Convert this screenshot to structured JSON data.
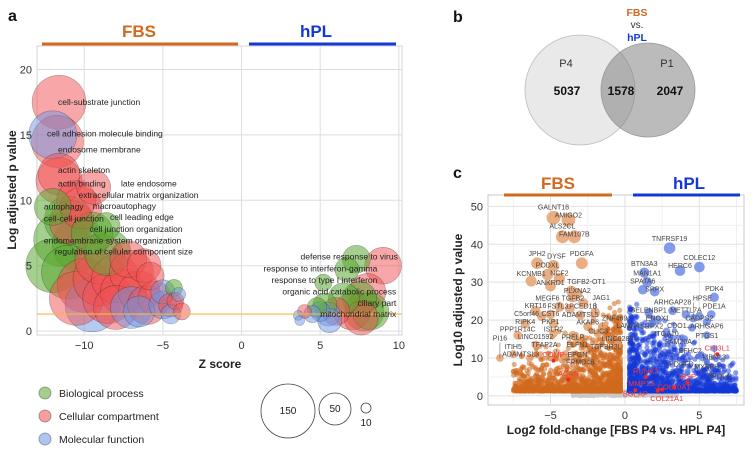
{
  "colors": {
    "fbs": "#d2691e",
    "hpl": "#1438d8",
    "bio": "#5aa832",
    "cell": "#f05050",
    "mol": "#6e96e6",
    "threshold": "#f5b942"
  },
  "chart_data": [
    {
      "panel": "a",
      "type": "scatter",
      "subtype": "bubble",
      "group_labels": {
        "left": "FBS",
        "right": "hPL"
      },
      "xlabel": "Z score",
      "ylabel": "Log adjusted p value",
      "xlim": [
        -13,
        10.2
      ],
      "ylim": [
        -0.3,
        21.8
      ],
      "xticks": [
        -10,
        -5,
        0,
        5,
        10
      ],
      "yticks": [
        0,
        5,
        10,
        15,
        20
      ],
      "threshold_y": 1.3,
      "grid": true,
      "legend": {
        "categories": [
          {
            "key": "B",
            "label": "Biological process"
          },
          {
            "key": "C",
            "label": "Cellular compartment"
          },
          {
            "key": "M",
            "label": "Molecular function"
          }
        ],
        "sizes": [
          150,
          50,
          10
        ],
        "size_labels": [
          "150",
          "50",
          "10"
        ],
        "placement": "bottom"
      },
      "bubbles": [
        [
          -11.6,
          17.5,
          150,
          "C"
        ],
        [
          -12,
          15,
          120,
          "M"
        ],
        [
          -11.7,
          14.5,
          140,
          "C"
        ],
        [
          -11.6,
          12,
          90,
          "C"
        ],
        [
          -11.6,
          11.5,
          110,
          "C"
        ],
        [
          -9.4,
          11,
          60,
          "C"
        ],
        [
          -10.5,
          10,
          80,
          "C"
        ],
        [
          -12,
          9.5,
          70,
          "B"
        ],
        [
          -10.2,
          9.4,
          90,
          "C"
        ],
        [
          -11,
          8.5,
          120,
          "B"
        ],
        [
          -10.8,
          8.3,
          100,
          "C"
        ],
        [
          -8.6,
          8,
          40,
          "B"
        ],
        [
          -9.5,
          7.5,
          90,
          "B"
        ],
        [
          -11.5,
          7,
          150,
          "B"
        ],
        [
          -10.3,
          6.6,
          150,
          "B"
        ],
        [
          -12,
          5,
          150,
          "B"
        ],
        [
          -11,
          4.5,
          150,
          "B"
        ],
        [
          -9,
          5.5,
          130,
          "C"
        ],
        [
          -10,
          3.5,
          150,
          "C"
        ],
        [
          -9.5,
          2,
          150,
          "M"
        ],
        [
          -10.5,
          2.5,
          150,
          "C"
        ],
        [
          -8.5,
          2.5,
          130,
          "C"
        ],
        [
          -8,
          4,
          120,
          "C"
        ],
        [
          -7,
          4.5,
          100,
          "C"
        ],
        [
          -7.5,
          3,
          110,
          "C"
        ],
        [
          -6.5,
          3,
          90,
          "C"
        ],
        [
          -6,
          2,
          80,
          "C"
        ],
        [
          -7,
          1.8,
          90,
          "M"
        ],
        [
          -8,
          1.8,
          100,
          "C"
        ],
        [
          -5.8,
          4.2,
          40,
          "C"
        ],
        [
          -5.5,
          2.5,
          60,
          "C"
        ],
        [
          -5,
          2,
          40,
          "M"
        ],
        [
          -5,
          3,
          30,
          "M"
        ],
        [
          -4.5,
          2,
          30,
          "C"
        ],
        [
          -4.3,
          3.3,
          15,
          "B"
        ],
        [
          -4.2,
          2.3,
          15,
          "C"
        ],
        [
          -4.5,
          1.3,
          20,
          "M"
        ],
        [
          -3.8,
          1.5,
          15,
          "C"
        ],
        [
          -4,
          2.8,
          10,
          "M"
        ],
        [
          -6.5,
          1.5,
          50,
          "M"
        ],
        [
          -9,
          4,
          150,
          "C"
        ],
        [
          -7.2,
          5.5,
          70,
          "C"
        ],
        [
          -8.5,
          6,
          110,
          "B"
        ],
        [
          -6.2,
          5,
          60,
          "C"
        ],
        [
          7.3,
          5.5,
          40,
          "B"
        ],
        [
          9,
          5,
          70,
          "C"
        ],
        [
          6.7,
          4.7,
          30,
          "B"
        ],
        [
          5.2,
          3.7,
          15,
          "B"
        ],
        [
          8,
          3,
          70,
          "C"
        ],
        [
          7.5,
          2.5,
          60,
          "B"
        ],
        [
          7.8,
          1.5,
          80,
          "B"
        ],
        [
          7,
          1.5,
          70,
          "C"
        ],
        [
          7.6,
          1,
          60,
          "C"
        ],
        [
          8.2,
          1.5,
          70,
          "B"
        ],
        [
          6,
          1.5,
          40,
          "C"
        ],
        [
          5.5,
          1.3,
          30,
          "M"
        ],
        [
          5,
          1.5,
          20,
          "M"
        ],
        [
          4.5,
          1.3,
          15,
          "M"
        ],
        [
          4,
          1.5,
          10,
          "C"
        ],
        [
          3.6,
          1.2,
          5,
          "M"
        ],
        [
          3.7,
          0.8,
          5,
          "M"
        ],
        [
          5.3,
          2,
          30,
          "B"
        ],
        [
          6.5,
          2.5,
          50,
          "B"
        ],
        [
          4.8,
          1.8,
          20,
          "B"
        ],
        [
          5.6,
          0.8,
          30,
          "M"
        ]
      ],
      "annotations": [
        {
          "text": "cell-substrate junction",
          "z": -11.6,
          "p": 17.5,
          "anchor": "start"
        },
        {
          "text": "cell adhesion molecule binding",
          "z": -12.3,
          "p": 15.1,
          "anchor": "start"
        },
        {
          "text": "endosome membrane",
          "z": -11.6,
          "p": 13.9,
          "anchor": "start"
        },
        {
          "text": "actin skeleton",
          "z": -11.6,
          "p": 12.3,
          "anchor": "start"
        },
        {
          "text": "actin binding",
          "z": -11.6,
          "p": 11.3,
          "anchor": "start"
        },
        {
          "text": "late endosome",
          "z": -7.6,
          "p": 11.3,
          "anchor": "start"
        },
        {
          "text": "extracellular matrix organization",
          "z": -10.3,
          "p": 10.4,
          "anchor": "start"
        },
        {
          "text": "autophagy",
          "z": -12.5,
          "p": 9.9,
          "anchor": "start"
        },
        {
          "text": "macroautophagy",
          "z": -9.4,
          "p": 9.8,
          "anchor": "start"
        },
        {
          "text": "cell-cell junction",
          "z": -12.5,
          "p": 8.7,
          "anchor": "start"
        },
        {
          "text": "cell leading edge",
          "z": -8.3,
          "p": 8.8,
          "anchor": "start"
        },
        {
          "text": "cell junction organization",
          "z": -9.6,
          "p": 8.1,
          "anchor": "start"
        },
        {
          "text": "endomembrane system organization",
          "z": -12.5,
          "p": 7.3,
          "anchor": "start"
        },
        {
          "text": "regulation of cellular component size",
          "z": -11.8,
          "p": 6.3,
          "anchor": "start"
        },
        {
          "text": "defense response to virus",
          "z": 10,
          "p": 5.7,
          "anchor": "end"
        },
        {
          "text": "response to interferon-gamma",
          "z": 8.7,
          "p": 4.8,
          "anchor": "end"
        },
        {
          "text": "response to type I interferon",
          "z": 8.7,
          "p": 4.0,
          "anchor": "end"
        },
        {
          "text": "organic acid catabolic process",
          "z": 9.9,
          "p": 3.1,
          "anchor": "end"
        },
        {
          "text": "ciliary part",
          "z": 9.9,
          "p": 2.3,
          "anchor": "end"
        },
        {
          "text": "mitochondrial matrix",
          "z": 9.9,
          "p": 1.6,
          "anchor": "end"
        }
      ]
    },
    {
      "panel": "b",
      "type": "venn",
      "title_parts": [
        "FBS",
        "vs.",
        "hPL"
      ],
      "sets": [
        {
          "name": "P4",
          "only": 5037
        },
        {
          "name": "P1",
          "only": 2047
        }
      ],
      "intersection": 1578,
      "labels": {
        "p4": "P4",
        "p1": "P1",
        "p4_only": "5037",
        "both": "1578",
        "p1_only": "2047"
      }
    },
    {
      "panel": "c",
      "type": "scatter",
      "subtype": "volcano",
      "group_labels": {
        "left": "FBS",
        "right": "hPL"
      },
      "xlabel": "Log2 fold-change [FBS P4 vs. HPL P4]",
      "ylabel": "Log10 adjusted p value",
      "xlim": [
        -9.2,
        8.0
      ],
      "ylim": [
        -2.4,
        53
      ],
      "xticks": [
        -5,
        0,
        5
      ],
      "yticks": [
        0,
        10,
        20,
        30,
        40,
        50
      ],
      "grid": true,
      "cloud": {
        "fbs_points": 1400,
        "hpl_points": 1400,
        "nonsig_points": 500
      },
      "genes": [
        {
          "name": "GALNT18",
          "x": -4.8,
          "y": 47,
          "s": "fbs"
        },
        {
          "name": "AMIGO2",
          "x": -3.8,
          "y": 46.4,
          "s": "fbs"
        },
        {
          "name": "ALS2CL",
          "x": -4.2,
          "y": 42,
          "s": "fbs"
        },
        {
          "name": "FAM107B",
          "x": -3.4,
          "y": 42,
          "s": "fbs"
        },
        {
          "name": "JPH2",
          "x": -5.9,
          "y": 35,
          "s": "fbs"
        },
        {
          "name": "DYSF",
          "x": -4.8,
          "y": 34.3,
          "s": "fbs"
        },
        {
          "name": "PDGFA",
          "x": -2.9,
          "y": 35,
          "s": "fbs"
        },
        {
          "name": "PODXL",
          "x": -5.2,
          "y": 32,
          "s": "fbs"
        },
        {
          "name": "NCF2",
          "x": -4.4,
          "y": 31,
          "s": "fbs"
        },
        {
          "name": "KCNMB1",
          "x": -6.3,
          "y": 30.3,
          "s": "fbs"
        },
        {
          "name": "ANKRD1",
          "x": -5,
          "y": 29,
          "s": "fbs"
        },
        {
          "name": "TGFB2-OT1",
          "x": -3.6,
          "y": 27.7,
          "s": "fbs"
        },
        {
          "name": "PLXNA2",
          "x": -3.2,
          "y": 27,
          "s": "fbs"
        },
        {
          "name": "TGFB2",
          "x": -3.5,
          "y": 26,
          "s": "fbs"
        },
        {
          "name": "PCED1B",
          "x": -2.8,
          "y": 24.5,
          "s": "fbs"
        },
        {
          "name": "MEGF6",
          "x": -4.4,
          "y": 23.5,
          "s": "fbs"
        },
        {
          "name": "FSTL3",
          "x": -3.7,
          "y": 23,
          "s": "fbs"
        },
        {
          "name": "JAG1",
          "x": -2,
          "y": 22,
          "s": "fbs"
        },
        {
          "name": "ADAMTSL5",
          "x": -3,
          "y": 21.3,
          "s": "fbs"
        },
        {
          "name": "KRT16",
          "x": -6,
          "y": 22.5,
          "s": "fbs"
        },
        {
          "name": "C5orf46",
          "x": -5.6,
          "y": 21,
          "s": "fbs"
        },
        {
          "name": "CST6",
          "x": -5,
          "y": 21.5,
          "s": "fbs"
        },
        {
          "name": "RIPK4",
          "x": -6.7,
          "y": 19,
          "s": "fbs"
        },
        {
          "name": "PKP1",
          "x": -4.8,
          "y": 19,
          "s": "fbs"
        },
        {
          "name": "AKAP6",
          "x": -2.5,
          "y": 18.3,
          "s": "fbs"
        },
        {
          "name": "ZNF469",
          "x": -1.5,
          "y": 18.3,
          "s": "fbs"
        },
        {
          "name": "ISLR2",
          "x": -4.8,
          "y": 16.5,
          "s": "fbs"
        },
        {
          "name": "PRELP",
          "x": -3.5,
          "y": 16,
          "s": "fbs"
        },
        {
          "name": "CLIC3",
          "x": -1.8,
          "y": 16.5,
          "s": "fbs"
        },
        {
          "name": "PPP1R14C",
          "x": -7.2,
          "y": 16,
          "s": "fbs"
        },
        {
          "name": "ELFN1",
          "x": -3.2,
          "y": 14.5,
          "s": "fbs"
        },
        {
          "name": "LINC01592",
          "x": -6,
          "y": 13.5,
          "s": "fbs"
        },
        {
          "name": "LINC0288",
          "x": -0.5,
          "y": 13.5,
          "s": "fbs"
        },
        {
          "name": "ITIH5",
          "x": -7.5,
          "y": 11,
          "s": "fbs"
        },
        {
          "name": "TFAP2A",
          "x": -4.6,
          "y": 11.5,
          "s": "fbs"
        },
        {
          "name": "EPGN",
          "x": -4,
          "y": 11,
          "s": "fbs"
        },
        {
          "name": "TGFBR3L",
          "x": -2.7,
          "y": 11,
          "s": "fbs"
        },
        {
          "name": "FRMD4B",
          "x": -4.2,
          "y": 9.5,
          "s": "fbs"
        },
        {
          "name": "ADAMTSL3",
          "x": -6.4,
          "y": 10,
          "s": "fbs"
        },
        {
          "name": "PI16",
          "x": -8.4,
          "y": 10,
          "s": "fbs"
        },
        {
          "name": "COMP",
          "x": -4.8,
          "y": 9.3,
          "s": "marker"
        },
        {
          "name": "ACAN",
          "x": -3.8,
          "y": 4.3,
          "s": "marker"
        },
        {
          "name": "TNFRSF19",
          "x": 3,
          "y": 39,
          "s": "hpl"
        },
        {
          "name": "COLEC12",
          "x": 5,
          "y": 34,
          "s": "hpl"
        },
        {
          "name": "HERC6",
          "x": 3.7,
          "y": 33,
          "s": "hpl"
        },
        {
          "name": "BTN3A3",
          "x": 1.3,
          "y": 32.5,
          "s": "hpl"
        },
        {
          "name": "MAN1A1",
          "x": 1.5,
          "y": 30,
          "s": "hpl"
        },
        {
          "name": "SPATA6",
          "x": 1.2,
          "y": 28,
          "s": "hpl"
        },
        {
          "name": "SRPX",
          "x": 2,
          "y": 27.5,
          "s": "hpl"
        },
        {
          "name": "METTL7A",
          "x": 4.1,
          "y": 21.5,
          "s": "hpl"
        },
        {
          "name": "PDK4",
          "x": 6,
          "y": 26,
          "s": "hpl"
        },
        {
          "name": "CADPS2",
          "x": 5,
          "y": 21,
          "s": "hpl"
        },
        {
          "name": "HPSE",
          "x": 4.6,
          "y": 20.5,
          "s": "hpl"
        },
        {
          "name": "PDE1A",
          "x": 5.8,
          "y": 21.5,
          "s": "hpl"
        },
        {
          "name": "ARHGAP6",
          "x": 5.5,
          "y": 19.5,
          "s": "hpl"
        },
        {
          "name": "ARHGAP28",
          "x": 3.2,
          "y": 22.5,
          "s": "hpl"
        },
        {
          "name": "SELENBP1",
          "x": 1.6,
          "y": 22,
          "s": "hpl"
        },
        {
          "name": "ENOX1",
          "x": 2.2,
          "y": 20,
          "s": "hpl"
        },
        {
          "name": "SRPX2",
          "x": 1.8,
          "y": 19,
          "s": "hpl"
        },
        {
          "name": "LAMA4",
          "x": 1,
          "y": 18,
          "s": "hpl"
        },
        {
          "name": "ITGA10",
          "x": 2.8,
          "y": 17,
          "s": "hpl"
        },
        {
          "name": "CDO1",
          "x": 4.5,
          "y": 18,
          "s": "hpl"
        },
        {
          "name": "FAM20A",
          "x": 4,
          "y": 15,
          "s": "hpl"
        },
        {
          "name": "PTGS1",
          "x": 5.5,
          "y": 16,
          "s": "hpl"
        },
        {
          "name": "MBNL3",
          "x": 6,
          "y": 12.5,
          "s": "hpl"
        },
        {
          "name": "EFHC2",
          "x": 5,
          "y": 10.5,
          "s": "hpl"
        },
        {
          "name": "MYBPH",
          "x": 5.5,
          "y": 9,
          "s": "hpl"
        },
        {
          "name": "APOL4",
          "x": 6.3,
          "y": 5.5,
          "s": "hpl"
        },
        {
          "name": "PDGFD",
          "x": 4.2,
          "y": 6.5,
          "s": "hpl"
        },
        {
          "name": "CHI3L1",
          "x": 6.2,
          "y": 11,
          "s": "marker"
        },
        {
          "name": "RUNX2",
          "x": 1.4,
          "y": 5,
          "s": "marker"
        },
        {
          "name": "BGLAP",
          "x": 0.7,
          "y": 1.5,
          "s": "marker"
        },
        {
          "name": "COL21A1",
          "x": 2.2,
          "y": 1.4,
          "s": "marker"
        },
        {
          "name": "MMP13",
          "x": 2.5,
          "y": 1.7,
          "s": "marker"
        },
        {
          "name": "COL10A1",
          "x": 3.3,
          "y": 2.3,
          "s": "marker"
        },
        {
          "name": "IBSP",
          "x": 4.2,
          "y": 3.5,
          "s": "marker"
        }
      ]
    }
  ],
  "labels": {
    "a": "a",
    "b": "b",
    "c": "c"
  }
}
